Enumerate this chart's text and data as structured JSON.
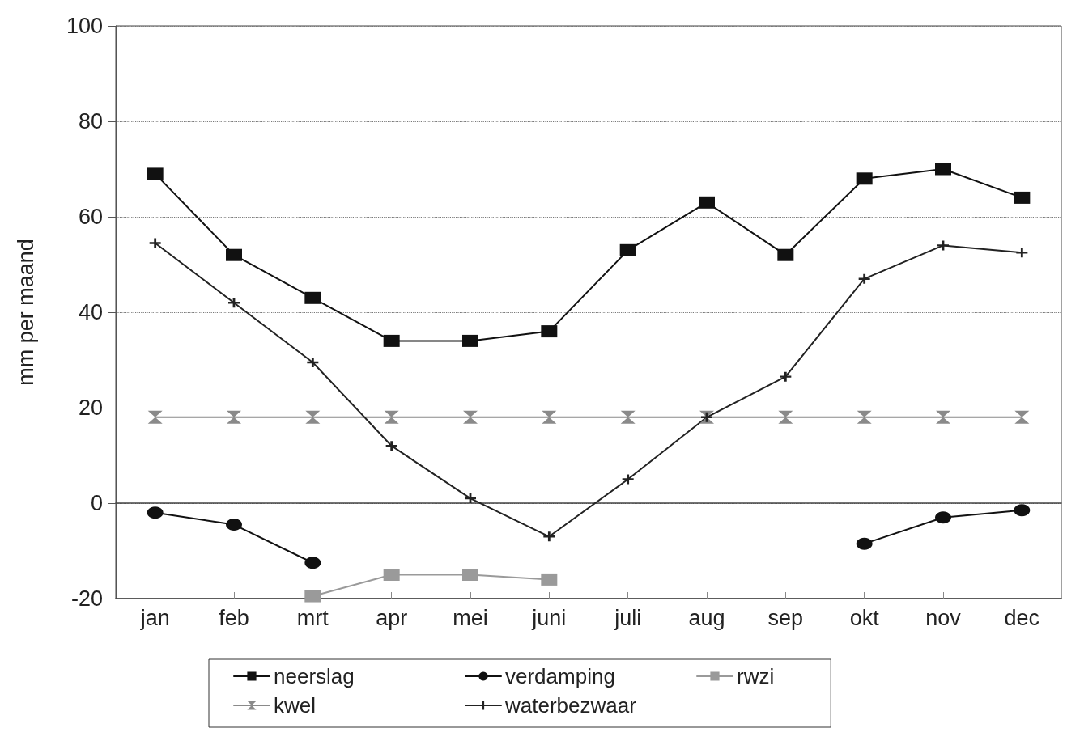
{
  "chart_data": {
    "type": "line",
    "ylabel": "mm per maand",
    "categories": [
      "jan",
      "feb",
      "mrt",
      "apr",
      "mei",
      "juni",
      "juli",
      "aug",
      "sep",
      "okt",
      "nov",
      "dec"
    ],
    "series": [
      {
        "name": "neerslag",
        "color": "#111111",
        "marker": "square",
        "values": [
          69,
          52,
          43,
          34,
          34,
          36,
          53,
          63,
          52,
          68,
          70,
          64
        ]
      },
      {
        "name": "verdamping",
        "color": "#111111",
        "marker": "circle",
        "values": [
          -2,
          -4.5,
          -12.5,
          null,
          null,
          null,
          null,
          null,
          null,
          -8.5,
          -3,
          -1.5
        ]
      },
      {
        "name": "rwzi",
        "color": "#9a9a9a",
        "marker": "square",
        "values": [
          null,
          null,
          -19.5,
          -15,
          -15,
          -16,
          null,
          null,
          null,
          null,
          null,
          null
        ]
      },
      {
        "name": "kwel",
        "color": "#8a8a8a",
        "marker": "triangle",
        "values": [
          18,
          18,
          18,
          18,
          18,
          18,
          18,
          18,
          18,
          18,
          18,
          18
        ]
      },
      {
        "name": "waterbezwaar",
        "color": "#222222",
        "marker": "cross",
        "values": [
          54.5,
          42,
          29.5,
          12,
          1,
          -7,
          5,
          18,
          26.5,
          47,
          54,
          52.5
        ]
      }
    ],
    "ylim": [
      -20,
      100
    ],
    "yticks": [
      -20,
      0,
      20,
      40,
      60,
      80,
      100
    ],
    "grid": "y",
    "legend": "bottom"
  }
}
